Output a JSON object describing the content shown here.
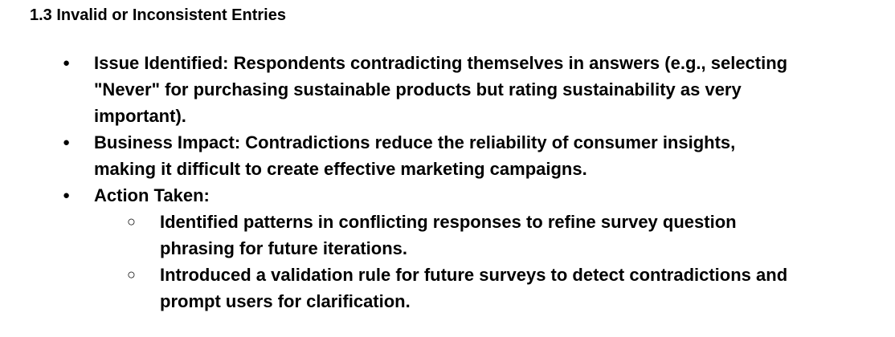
{
  "section": {
    "heading": "1.3 Invalid or Inconsistent Entries"
  },
  "bullets": [
    {
      "marker": "●",
      "lines": [
        "Issue Identified: Respondents contradicting themselves in answers (e.g., selecting",
        "\"Never\" for purchasing sustainable products but rating sustainability as very",
        "important)."
      ]
    },
    {
      "marker": "●",
      "lines": [
        "Business Impact: Contradictions reduce the reliability of consumer insights,",
        "making it difficult to create effective marketing campaigns."
      ]
    },
    {
      "marker": "●",
      "lines": [
        "Action Taken:"
      ],
      "sub_items": [
        {
          "marker": "○",
          "lines": [
            "Identified patterns in conflicting responses to refine survey question",
            "phrasing for future iterations."
          ]
        },
        {
          "marker": "○",
          "lines": [
            "Introduced a validation rule for future surveys to detect contradictions and",
            "prompt users for clarification."
          ]
        }
      ]
    }
  ]
}
